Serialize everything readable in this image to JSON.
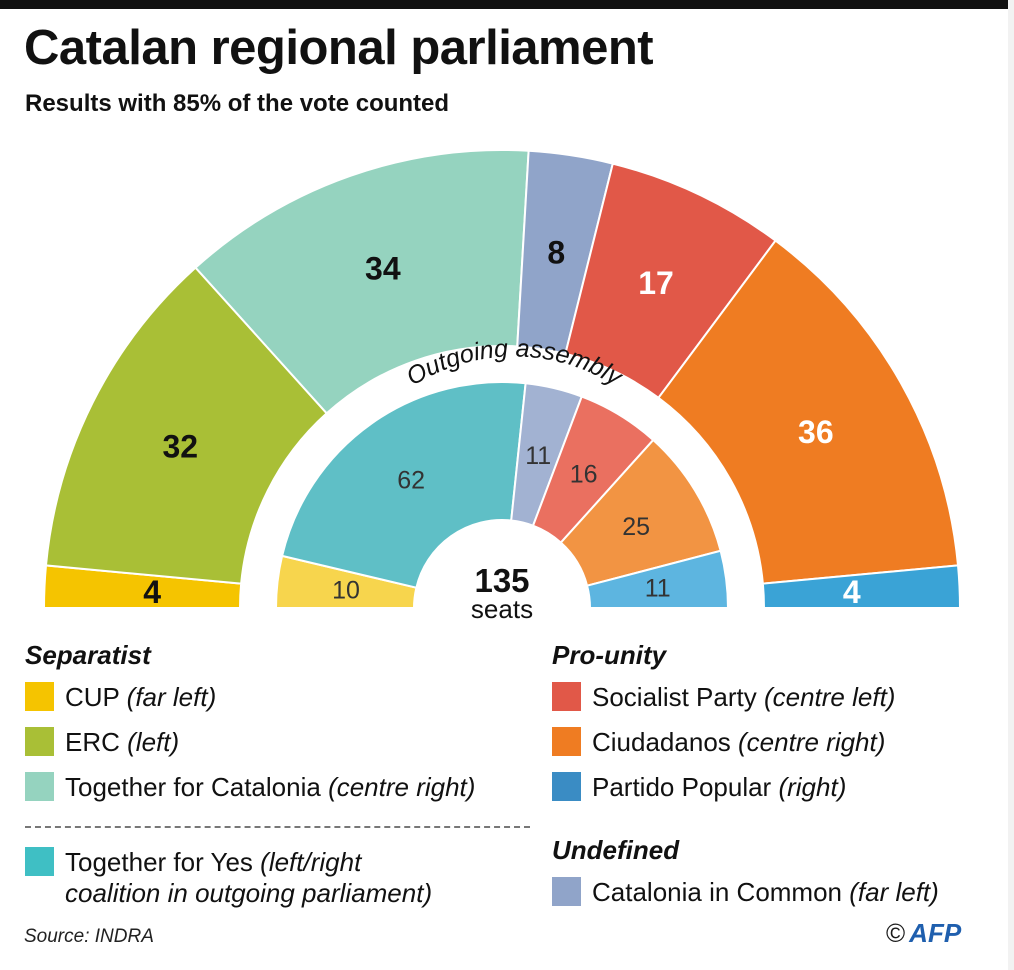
{
  "title": "Catalan regional parliament",
  "subtitle": "Results with 85% of the vote counted",
  "chart_data": {
    "type": "parliament-donut",
    "total_label": "135",
    "total_unit": "seats",
    "outgoing_label": "Outgoing assembly",
    "outer": [
      {
        "party": "CUP",
        "seats": 4,
        "color": "#f5c400",
        "label_color": "#111111"
      },
      {
        "party": "ERC",
        "seats": 32,
        "color": "#a9bf36",
        "label_color": "#111111"
      },
      {
        "party": "Together for Catalonia",
        "seats": 34,
        "color": "#95d3bf",
        "label_color": "#111111"
      },
      {
        "party": "Catalonia in Common",
        "seats": 8,
        "color": "#90a4c9",
        "label_color": "#111111"
      },
      {
        "party": "Socialist Party",
        "seats": 17,
        "color": "#e15848",
        "label_color": "#ffffff"
      },
      {
        "party": "Ciudadanos",
        "seats": 36,
        "color": "#ef7c22",
        "label_color": "#ffffff"
      },
      {
        "party": "Partido Popular",
        "seats": 4,
        "color": "#3aa3d6",
        "label_color": "#ffffff"
      }
    ],
    "inner": [
      {
        "party": "CUP",
        "seats": 10,
        "color": "#f7d54d",
        "label_color": "#333333"
      },
      {
        "party": "Together for Yes",
        "seats": 62,
        "color": "#5fbfc6",
        "label_color": "#333333"
      },
      {
        "party": "Catalonia in Common",
        "seats": 11,
        "color": "#a2b2d2",
        "label_color": "#333333"
      },
      {
        "party": "Socialist Party",
        "seats": 16,
        "color": "#ea7060",
        "label_color": "#333333"
      },
      {
        "party": "Ciudadanos",
        "seats": 25,
        "color": "#f29443",
        "label_color": "#333333"
      },
      {
        "party": "Partido Popular",
        "seats": 11,
        "color": "#5db5e0",
        "label_color": "#333333"
      }
    ]
  },
  "legend": {
    "separatist": {
      "heading": "Separatist",
      "items": [
        {
          "name": "CUP",
          "desc": "(far left)",
          "color": "#f5c400"
        },
        {
          "name": "ERC",
          "desc": "(left)",
          "color": "#a9bf36"
        },
        {
          "name": "Together for Catalonia",
          "desc": "(centre right)",
          "color": "#95d3bf"
        }
      ],
      "outgoing_item": {
        "name": "Together for Yes",
        "desc_line1": "(left/right",
        "desc_line2": "coalition in outgoing parliament)",
        "color": "#3fbfc4"
      }
    },
    "pro_unity": {
      "heading": "Pro-unity",
      "items": [
        {
          "name": "Socialist Party",
          "desc": "(centre left)",
          "color": "#e15848"
        },
        {
          "name": "Ciudadanos",
          "desc": "(centre right)",
          "color": "#ef7c22"
        },
        {
          "name": "Partido Popular",
          "desc": "(right)",
          "color": "#3a8cc4"
        }
      ]
    },
    "undefined": {
      "heading": "Undefined",
      "items": [
        {
          "name": "Catalonia in Common",
          "desc": "(far left)",
          "color": "#90a4c9"
        }
      ]
    }
  },
  "source": "Source: INDRA",
  "credit": {
    "copyright": "©",
    "agency": "AFP"
  }
}
